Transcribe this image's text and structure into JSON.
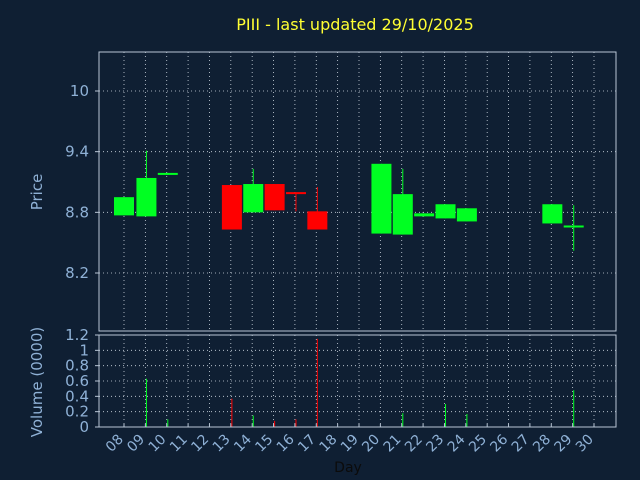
{
  "chart_data": {
    "type": "candlestick",
    "title": "PIII - last updated 29/10/2025",
    "xlabel": "Day",
    "price_panel": {
      "ylabel": "Price",
      "ylim": [
        8.0,
        10.6
      ],
      "yticks": [
        "8.2",
        "8.8",
        "9.4",
        "10"
      ],
      "ytick_values": [
        8.2,
        8.8,
        9.4,
        10.0
      ]
    },
    "volume_panel": {
      "ylabel": "Volume (0000)",
      "ylim": [
        0,
        1.2
      ],
      "yticks": [
        "0",
        "0.2",
        "0.4",
        "0.6",
        "0.8",
        "1",
        "1.2"
      ],
      "ytick_values": [
        0,
        0.2,
        0.4,
        0.6,
        0.8,
        1.0,
        1.2
      ]
    },
    "x_labels": [
      "08",
      "09",
      "10",
      "11",
      "12",
      "13",
      "14",
      "15",
      "16",
      "17",
      "18",
      "19",
      "20",
      "21",
      "22",
      "23",
      "24",
      "25",
      "26",
      "27",
      "28",
      "29",
      "30"
    ],
    "x_range": [
      0,
      22
    ],
    "candles": [
      {
        "x": 0.0,
        "open": 8.77,
        "close": 8.95,
        "high": 8.95,
        "low": 8.77,
        "volume": 0.0
      },
      {
        "x": 1.05,
        "open": 8.76,
        "close": 9.14,
        "high": 9.41,
        "low": 8.76,
        "volume": 0.63
      },
      {
        "x": 2.05,
        "open": 9.17,
        "close": 9.19,
        "high": 9.19,
        "low": 9.17,
        "volume": 0.1
      },
      {
        "x": 5.05,
        "open": 9.07,
        "close": 8.63,
        "high": 9.07,
        "low": 8.63,
        "volume": 0.37
      },
      {
        "x": 6.05,
        "open": 8.8,
        "close": 9.08,
        "high": 9.23,
        "low": 8.8,
        "volume": 0.15
      },
      {
        "x": 7.05,
        "open": 9.08,
        "close": 8.82,
        "high": 9.08,
        "low": 8.82,
        "volume": 0.08
      },
      {
        "x": 8.05,
        "open": 8.99,
        "close": 8.98,
        "high": 8.99,
        "low": 8.81,
        "volume": 0.1
      },
      {
        "x": 9.05,
        "open": 8.81,
        "close": 8.63,
        "high": 9.05,
        "low": 8.63,
        "volume": 1.15
      },
      {
        "x": 12.05,
        "open": 8.59,
        "close": 9.28,
        "high": 9.28,
        "low": 8.59,
        "volume": 0.0
      },
      {
        "x": 13.05,
        "open": 8.58,
        "close": 8.98,
        "high": 9.23,
        "low": 8.58,
        "volume": 0.18
      },
      {
        "x": 14.05,
        "open": 8.76,
        "close": 8.79,
        "high": 8.79,
        "low": 8.76,
        "volume": 0.0
      },
      {
        "x": 15.05,
        "open": 8.74,
        "close": 8.88,
        "high": 8.88,
        "low": 8.74,
        "volume": 0.3
      },
      {
        "x": 16.05,
        "open": 8.71,
        "close": 8.84,
        "high": 8.84,
        "low": 8.71,
        "volume": 0.17
      },
      {
        "x": 20.05,
        "open": 8.69,
        "close": 8.88,
        "high": 8.88,
        "low": 8.69,
        "volume": 0.0
      },
      {
        "x": 21.05,
        "open": 8.65,
        "close": 8.66,
        "high": 8.87,
        "low": 8.42,
        "volume": 0.48
      }
    ],
    "colors": {
      "background": "#0f1f33",
      "title": "#ffff33",
      "axis_text": "#8fb1d6",
      "frame": "#b8c6d6",
      "grid": "#cfd8e2",
      "up": "#00ff22",
      "down": "#ff0000"
    }
  }
}
